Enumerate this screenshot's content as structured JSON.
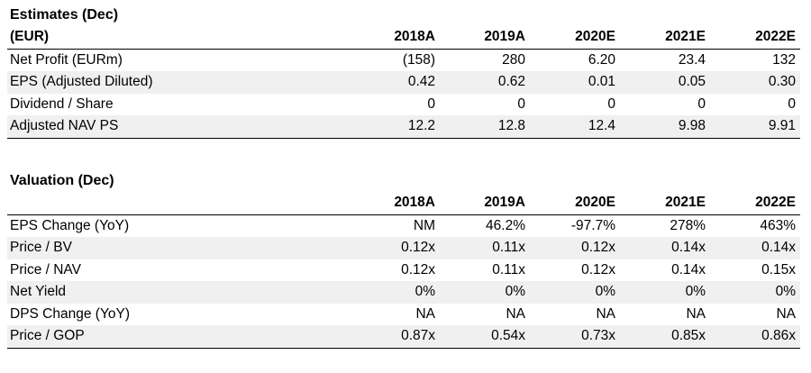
{
  "estimates": {
    "title": "Estimates (Dec)",
    "headers": [
      "(EUR)",
      "2018A",
      "2019A",
      "2020E",
      "2021E",
      "2022E"
    ],
    "rows": [
      {
        "label": "Net Profit (EURm)",
        "values": [
          "(158)",
          "280",
          "6.20",
          "23.4",
          "132"
        ]
      },
      {
        "label": "EPS (Adjusted Diluted)",
        "values": [
          "0.42",
          "0.62",
          "0.01",
          "0.05",
          "0.30"
        ]
      },
      {
        "label": "Dividend / Share",
        "values": [
          "0",
          "0",
          "0",
          "0",
          "0"
        ]
      },
      {
        "label": "Adjusted NAV PS",
        "values": [
          "12.2",
          "12.8",
          "12.4",
          "9.98",
          "9.91"
        ]
      }
    ]
  },
  "valuation": {
    "title": "Valuation (Dec)",
    "headers": [
      "",
      "2018A",
      "2019A",
      "2020E",
      "2021E",
      "2022E"
    ],
    "rows": [
      {
        "label": "EPS Change (YoY)",
        "values": [
          "NM",
          "46.2%",
          "-97.7%",
          "278%",
          "463%"
        ]
      },
      {
        "label": "Price / BV",
        "values": [
          "0.12x",
          "0.11x",
          "0.12x",
          "0.14x",
          "0.14x"
        ]
      },
      {
        "label": "Price / NAV",
        "values": [
          "0.12x",
          "0.11x",
          "0.12x",
          "0.14x",
          "0.15x"
        ]
      },
      {
        "label": "Net Yield",
        "values": [
          "0%",
          "0%",
          "0%",
          "0%",
          "0%"
        ]
      },
      {
        "label": "DPS Change (YoY)",
        "values": [
          "NA",
          "NA",
          "NA",
          "NA",
          "NA"
        ]
      },
      {
        "label": "Price / GOP",
        "values": [
          "0.87x",
          "0.54x",
          "0.73x",
          "0.85x",
          "0.86x"
        ]
      }
    ]
  }
}
